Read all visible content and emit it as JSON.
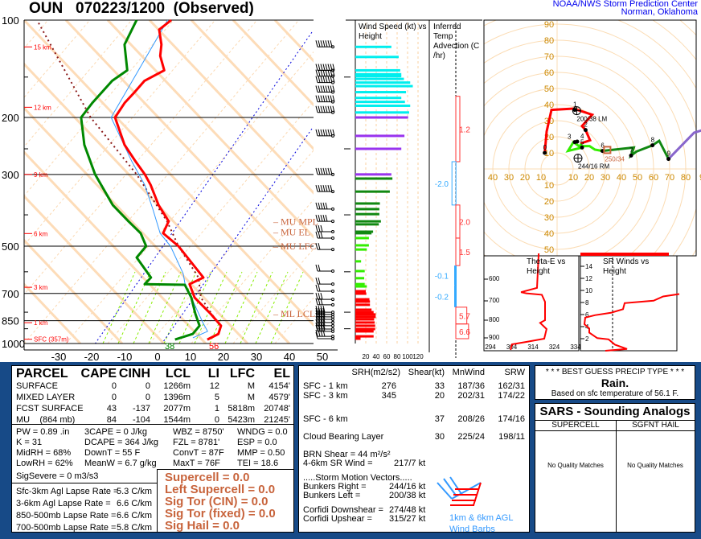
{
  "header": {
    "title": "OUN   070223/1200  (Observed)",
    "org_line1": "NOAA/NWS Storm Prediction Center",
    "org_line2": "Norman, Oklahoma"
  },
  "colors": {
    "temperature": "#ff0000",
    "dewpoint": "#008800",
    "wetbulb": "#3399ff",
    "parcel": "#8b1a1a",
    "panel_bg": "#174a87",
    "index_text": "#c8643c",
    "hodo_grid": "#e8a040"
  },
  "chart_data": [
    {
      "type": "line",
      "name": "skew-t",
      "xlabel": "",
      "ylabel": "",
      "xlim": [
        -40,
        50
      ],
      "ylim": [
        1000,
        100
      ],
      "x_ticks": [
        "-30",
        "-20",
        "-10",
        "0",
        "10",
        "20",
        "30",
        "40",
        "50"
      ],
      "p_ticks": [
        "100",
        "200",
        "300",
        "500",
        "700",
        "850",
        "1000"
      ],
      "height_labels": [
        {
          "p": 121,
          "text": "15 km"
        },
        {
          "p": 186,
          "text": "12 km"
        },
        {
          "p": 300,
          "text": "9 km"
        },
        {
          "p": 457,
          "text": "6 km"
        },
        {
          "p": 670,
          "text": "3 km"
        },
        {
          "p": 862,
          "text": "1 km"
        },
        {
          "p": 970,
          "text": "SFC (357m)"
        }
      ],
      "parcel_labels": [
        {
          "p": 420,
          "text": "MU MPL"
        },
        {
          "p": 428,
          "text": "MU EL"
        },
        {
          "p": 500,
          "text": "MU LFC"
        },
        {
          "p": 808,
          "text": "ML LCL"
        }
      ],
      "surface_temp_label": "56",
      "surface_dewpoint_label": "38",
      "temperature": [
        [
          100,
          -69.4
        ],
        [
          107,
          -70.9
        ],
        [
          119,
          -66.8
        ],
        [
          129,
          -64.6
        ],
        [
          143,
          -60.1
        ],
        [
          154,
          -63.7
        ],
        [
          167,
          -64.1
        ],
        [
          180,
          -64.7
        ],
        [
          200,
          -64.3
        ],
        [
          243,
          -55.2
        ],
        [
          272,
          -48.4
        ],
        [
          300,
          -42.3
        ],
        [
          323,
          -38.2
        ],
        [
          373,
          -31.2
        ],
        [
          419,
          -24.4
        ],
        [
          456,
          -23.4
        ],
        [
          500,
          -15.8
        ],
        [
          625,
          -1.1
        ],
        [
          655,
          -3.8
        ],
        [
          721,
          0.8
        ],
        [
          809,
          9.3
        ],
        [
          881,
          15.2
        ],
        [
          934,
          16.3
        ],
        [
          972,
          14.2
        ]
      ],
      "dewpoint": [
        [
          100,
          -79.9
        ],
        [
          119,
          -78
        ],
        [
          143,
          -71.3
        ],
        [
          154,
          -73.5
        ],
        [
          180,
          -74.5
        ],
        [
          200,
          -74.6
        ],
        [
          243,
          -67.4
        ],
        [
          300,
          -57.4
        ],
        [
          373,
          -45.1
        ],
        [
          419,
          -36.6
        ],
        [
          456,
          -30.2
        ],
        [
          500,
          -25.6
        ],
        [
          542,
          -25.9
        ],
        [
          625,
          -17
        ],
        [
          655,
          -17.4
        ],
        [
          658,
          -5.1
        ],
        [
          721,
          -0.2
        ],
        [
          809,
          4.7
        ],
        [
          881,
          8.7
        ],
        [
          934,
          8.5
        ],
        [
          972,
          4.4
        ]
      ],
      "wetbulb": [
        [
          100,
          -70.5
        ],
        [
          200,
          -65.5
        ],
        [
          272,
          -49.5
        ],
        [
          323,
          -40
        ],
        [
          384,
          -32
        ],
        [
          456,
          -24.3
        ],
        [
          500,
          -18.2
        ],
        [
          608,
          -8.1
        ],
        [
          651,
          -5.4
        ],
        [
          721,
          -0.2
        ],
        [
          857,
          8.7
        ],
        [
          917,
          12.4
        ],
        [
          960,
          9.4
        ]
      ],
      "parcel": [
        [
          102,
          -109
        ],
        [
          200,
          -71.7
        ],
        [
          300,
          -44.8
        ],
        [
          419,
          -24.9
        ],
        [
          500,
          -15.8
        ],
        [
          625,
          -2.6
        ],
        [
          721,
          2.7
        ],
        [
          857,
          13.1
        ]
      ]
    },
    {
      "type": "bar",
      "name": "wind-speed-vs-height",
      "title": "Wind Speed (kt) vs Height",
      "x_ticks": [
        "20",
        "40",
        "60",
        "80",
        "100",
        "120"
      ],
      "levels_p": [
        121,
        130,
        143,
        147,
        149,
        152,
        156,
        160,
        167,
        174,
        179,
        184,
        193,
        200,
        228,
        250,
        300,
        309,
        339,
        369,
        384,
        398,
        419,
        428,
        451,
        456,
        472,
        497,
        512,
        557,
        597,
        628,
        655,
        666,
        689,
        701,
        730,
        742,
        759,
        786,
        800,
        813,
        827,
        842,
        861,
        881,
        902,
        917,
        950,
        966
      ],
      "speeds_kt": [
        69,
        83,
        86,
        88,
        88,
        93,
        105,
        110,
        97,
        88,
        95,
        105,
        103,
        101,
        94,
        88,
        69,
        71,
        66,
        47,
        46,
        46,
        49,
        45,
        34,
        31,
        26,
        26,
        22,
        11,
        18,
        17,
        18,
        22,
        20,
        21,
        27,
        28,
        28,
        31,
        35,
        39,
        39,
        36,
        37,
        38,
        38,
        35,
        35,
        10
      ]
    },
    {
      "type": "bar",
      "name": "inferred-temp-advection",
      "title": "Inferred Temp Advection (C /hr)",
      "layers": [
        {
          "p_top": 172,
          "p_bot": 274,
          "value": 1.2
        },
        {
          "p_top": 274,
          "p_bot": 373,
          "value": -2.0
        },
        {
          "p_top": 373,
          "p_bot": 472,
          "value": 2.0
        },
        {
          "p_top": 472,
          "p_bot": 574,
          "value": 1.5
        },
        {
          "p_top": 574,
          "p_bot": 661,
          "value": -0.1
        },
        {
          "p_top": 661,
          "p_bot": 772,
          "value": -0.2
        },
        {
          "p_top": 772,
          "p_bot": 870,
          "value": 5.7
        },
        {
          "p_top": 870,
          "p_bot": 966,
          "value": 6.6
        }
      ]
    },
    {
      "type": "line",
      "name": "hodograph",
      "ring_step_kt": 10,
      "v_ticks_up": [
        "90",
        "80",
        "70",
        "60",
        "50",
        "40",
        "30",
        "20",
        "10"
      ],
      "v_ticks_down": [
        "10",
        "20",
        "30",
        "40",
        "50"
      ],
      "u_ticks_left": [
        "40",
        "30",
        "20",
        "10"
      ],
      "u_ticks_right": [
        "10",
        "20",
        "30",
        "40",
        "50",
        "60",
        "70",
        "80",
        "9"
      ],
      "segments": [
        {
          "color": "#ff0000",
          "points": [
            [
              -7.7,
              10
            ],
            [
              -6.5,
              23.3
            ],
            [
              -3.5,
              36.7
            ],
            [
              10.2,
              37.5
            ],
            [
              21.8,
              33.7
            ],
            [
              15.5,
              26.7
            ],
            [
              17.7,
              24.2
            ],
            [
              20.5,
              17.8
            ],
            [
              14.5,
              15.8
            ]
          ]
        },
        {
          "color": "#33ee00",
          "points": [
            [
              14.5,
              15.8
            ],
            [
              15.5,
              13.3
            ],
            [
              6.8,
              11.2
            ],
            [
              10.2,
              16.7
            ],
            [
              13.5,
              14.2
            ],
            [
              20.2,
              14.2
            ],
            [
              23.5,
              12
            ],
            [
              28.2,
              11.2
            ]
          ]
        },
        {
          "color": "#118811",
          "points": [
            [
              28.2,
              11.2
            ],
            [
              47.7,
              13.3
            ],
            [
              46,
              8.3
            ],
            [
              49.3,
              10.8
            ],
            [
              59.3,
              14.7
            ],
            [
              63.5,
              17.5
            ],
            [
              69.3,
              6.2
            ]
          ]
        },
        {
          "color": "#8866cc",
          "points": [
            [
              69.3,
              6.2
            ],
            [
              85.2,
              22.5
            ],
            [
              90,
              24
            ]
          ]
        }
      ],
      "height_points": [
        {
          "label": "0",
          "uv": [
            -7.7,
            10
          ]
        },
        {
          "label": "1",
          "uv": [
            11,
            36.7
          ]
        },
        {
          "label": "2",
          "uv": [
            17.7,
            24.2
          ]
        },
        {
          "label": "3",
          "uv": [
            11,
            16.7
          ]
        },
        {
          "label": "4",
          "uv": [
            12.5,
            17
          ]
        },
        {
          "label": "5",
          "uv": [
            15.5,
            13.3
          ]
        },
        {
          "label": "6",
          "uv": [
            28.2,
            11.2
          ]
        },
        {
          "label": "7",
          "uv": [
            46,
            8.3
          ]
        },
        {
          "label": "8",
          "uv": [
            59.3,
            14.7
          ]
        },
        {
          "label": "9",
          "uv": [
            69.3,
            6.2
          ]
        }
      ],
      "left_mover": {
        "label": "200/38 LM",
        "uv": [
          12.2,
          36.2
        ]
      },
      "right_mover": {
        "label": "244/16 RM",
        "uv": [
          13,
          6.7
        ]
      },
      "mean_wind": {
        "label": "250/34",
        "uv": [
          31.2,
          11.8
        ]
      }
    },
    {
      "type": "line",
      "name": "theta-e-vs-height",
      "title": "Theta-E vs Height",
      "x_ticks": [
        "294",
        "304",
        "314",
        "324",
        "334"
      ],
      "y_ticks": [
        "600",
        "700",
        "800",
        "900"
      ],
      "points": [
        [
          480,
          317.8
        ],
        [
          640,
          317
        ],
        [
          660,
          309.5
        ],
        [
          665,
          312
        ],
        [
          672,
          319.3
        ],
        [
          705,
          320.8
        ],
        [
          800,
          320.8
        ],
        [
          815,
          318.5
        ],
        [
          850,
          321.5
        ],
        [
          905,
          320.4
        ],
        [
          925,
          312
        ],
        [
          940,
          305.3
        ],
        [
          975,
          304.6
        ]
      ]
    },
    {
      "type": "line",
      "name": "sr-winds-vs-height",
      "title": "SR Winds vs Height",
      "y_ticks": [
        "2",
        "4",
        "6",
        "8",
        "10",
        "12",
        "14"
      ],
      "points": [
        [
          0,
          15.5
        ],
        [
          0.3,
          29
        ],
        [
          1.0,
          21.5
        ],
        [
          1.9,
          17.5
        ],
        [
          2.1,
          10.5
        ],
        [
          3.0,
          5.5
        ],
        [
          3.7,
          5.5
        ],
        [
          4.4,
          2.5
        ],
        [
          5.5,
          3
        ],
        [
          5.9,
          9
        ],
        [
          6.3,
          19
        ],
        [
          6.9,
          26.5
        ],
        [
          7.9,
          27.5
        ],
        [
          8.3,
          45.5
        ],
        [
          9,
          51.5
        ],
        [
          9.4,
          61.5
        ]
      ]
    }
  ],
  "parcel_table": {
    "headers": [
      "PARCEL",
      "CAPE",
      "CINH",
      "LCL",
      "LI",
      "LFC",
      "EL"
    ],
    "rows": [
      [
        "SURFACE",
        "0",
        "0",
        "1266m",
        "12",
        "M",
        "4154'"
      ],
      [
        "MIXED LAYER",
        "0",
        "0",
        "1396m",
        "5",
        "M",
        "4579'"
      ],
      [
        "FCST SURFACE",
        "43",
        "-137",
        "2077m",
        "1",
        "5818m",
        "20748'"
      ],
      [
        "MU    (864 mb)",
        "84",
        "-104",
        "1544m",
        "0",
        "5423m",
        "21245'"
      ]
    ]
  },
  "params": [
    [
      "PW = 0.89 .in",
      "3CAPE = 0 J/kg",
      "WBZ = 8750'",
      "WNDG = 0.0"
    ],
    [
      "K = 31",
      "DCAPE = 364 J/kg",
      "FZL = 8781'",
      "ESP = 0.0"
    ],
    [
      "MidRH = 68%",
      "DownT = 55 F",
      "ConvT = 87F",
      "MMP = 0.50"
    ],
    [
      "LowRH = 62%",
      "MeanW = 6.7 g/kg",
      "MaxT = 76F",
      "TEI = 18.6"
    ]
  ],
  "sig_severe": "SigSevere = 0 m3/s3",
  "lapse_rates": [
    {
      "label": "Sfc-3km Agl Lapse Rate =",
      "value": "5.3 C/km"
    },
    {
      "label": "3-6km Agl Lapse Rate =",
      "value": "6.6 C/km"
    },
    {
      "label": "850-500mb Lapse Rate =",
      "value": "6.6 C/km"
    },
    {
      "label": "700-500mb Lapse Rate =",
      "value": "5.8 C/km"
    }
  ],
  "indices": [
    "Supercell = 0.0",
    "Left Supercell = 0.0",
    "Sig Tor (CIN) = 0.0",
    "Sig Tor (fixed) = 0.0",
    "Sig Hail = 0.0"
  ],
  "kinematics": {
    "headers": [
      "SRH(m2/s2)",
      "Shear(kt)",
      "MnWind",
      "SRW"
    ],
    "rows": [
      [
        "SFC - 1 km",
        "276",
        "33",
        "187/36",
        "162/31"
      ],
      [
        "SFC - 3 km",
        "345",
        "20",
        "202/31",
        "174/22"
      ],
      [
        "SFC - 6 km",
        "",
        "37",
        "208/26",
        "174/16"
      ],
      [
        "Cloud Bearing Layer",
        "",
        "30",
        "225/24",
        "198/11"
      ]
    ],
    "brn_shear": "BRN Shear =  44 m²/s²",
    "sr_wind_label": "4-6km SR Wind =",
    "sr_wind_value": "217/7 kt",
    "storm_motion_title": ".....Storm Motion Vectors.....",
    "vectors": [
      {
        "label": "Bunkers Right =",
        "value": "244/16 kt"
      },
      {
        "label": "Bunkers Left =",
        "value": "200/38 kt"
      },
      {
        "label": "Corfidi Downshear =",
        "value": "274/48 kt"
      },
      {
        "label": "Corfidi Upshear =",
        "value": "315/27 kt"
      }
    ],
    "barb_caption1": "1km & 6km AGL",
    "barb_caption2": "Wind Barbs"
  },
  "precip": {
    "title": "* * * BEST GUESS PRECIP TYPE * * *",
    "type": "Rain.",
    "basis": "Based on sfc temperature of 56.1  F."
  },
  "sars": {
    "title": "SARS - Sounding Analogs",
    "col1": "SUPERCELL",
    "col2": "SGFNT HAIL",
    "col1_result": "No Quality Matches",
    "col2_result": "No Quality Matches"
  }
}
